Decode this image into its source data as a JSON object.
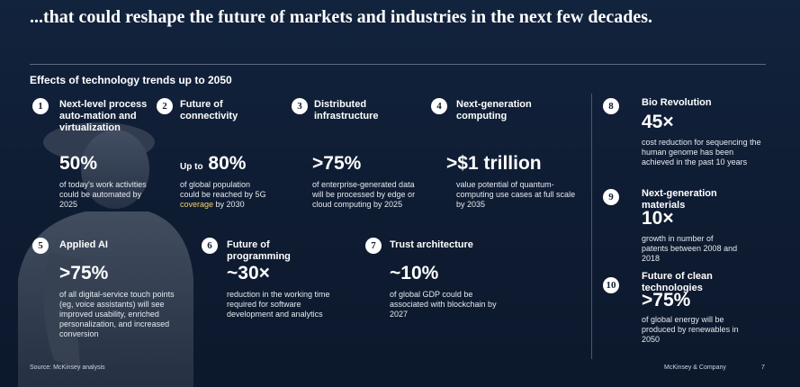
{
  "headline": "...that could reshape the future of markets and industries in the next few decades.",
  "subtitle": "Effects of technology trends up to 2050",
  "items": [
    {
      "n": "1",
      "title": "Next-level process auto-mation and virtualization",
      "stat": "50%",
      "desc": "of today's work activities could be automated by 2025"
    },
    {
      "n": "2",
      "title": "Future of connectivity",
      "stat_prefix": "Up to",
      "stat": "80%",
      "desc": "of global population could be reached by 5G",
      "desc_highlight": "coverage",
      "desc_tail": "by 2030"
    },
    {
      "n": "3",
      "title": "Distributed infrastructure",
      "stat": ">75%",
      "desc": "of enterprise-generated data will be processed by edge or cloud computing by 2025"
    },
    {
      "n": "4",
      "title": "Next-generation computing",
      "stat": ">$1 trillion",
      "desc": "value potential of quantum-computing use cases at full scale by 2035"
    },
    {
      "n": "5",
      "title": "Applied AI",
      "stat": ">75%",
      "desc": "of all digital-service touch points (eg, voice assistants) will see improved usability, enriched personalization, and increased conversion"
    },
    {
      "n": "6",
      "title": "Future of programming",
      "stat": "~30×",
      "desc": "reduction in the working time required for software development and analytics"
    },
    {
      "n": "7",
      "title": "Trust architecture",
      "stat": "~10%",
      "desc": "of global GDP could be associated with blockchain by 2027"
    },
    {
      "n": "8",
      "title": "Bio Revolution",
      "stat": "45×",
      "desc": "cost reduction for sequencing the human genome has been achieved in the past 10 years"
    },
    {
      "n": "9",
      "title": "Next-generation materials",
      "stat": "10×",
      "desc": "growth in number of patents between 2008 and 2018"
    },
    {
      "n": "10",
      "title": "Future of clean technologies",
      "stat": ">75%",
      "desc": "of global energy will be produced by renewables in 2050"
    }
  ],
  "footer": {
    "source": "Source: McKinsey analysis",
    "company": "McKinsey & Company",
    "page": "7"
  },
  "colors": {
    "background": "#0f1d33",
    "highlight": "#f2d06b"
  }
}
